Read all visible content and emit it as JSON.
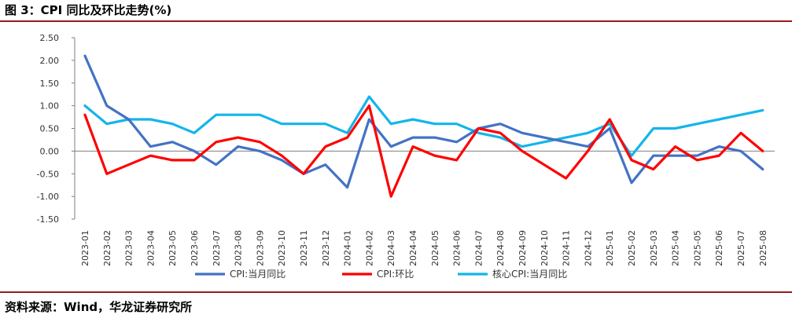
{
  "title": "图 3：CPI 同比及环比走势(%)",
  "source": "资料来源：Wind，华龙证券研究所",
  "chart_data": {
    "type": "line",
    "x": [
      "2023-01",
      "2023-02",
      "2023-03",
      "2023-04",
      "2023-05",
      "2023-06",
      "2023-07",
      "2023-08",
      "2023-09",
      "2023-10",
      "2023-11",
      "2023-12",
      "2024-01",
      "2024-02",
      "2024-03",
      "2024-04",
      "2024-05",
      "2024-06",
      "2024-07",
      "2024-08",
      "2024-09",
      "2024-10",
      "2024-11",
      "2024-12",
      "2025-01",
      "2025-02",
      "2025-03",
      "2025-04",
      "2025-05",
      "2025-06",
      "2025-07",
      "2025-08"
    ],
    "yticks": [
      "2.50",
      "2.00",
      "1.50",
      "1.00",
      "0.50",
      "0.00",
      "-0.50",
      "-1.00",
      "-1.50"
    ],
    "ylim": [
      -1.5,
      2.5
    ],
    "series": [
      {
        "name": "CPI:当月同比",
        "color": "#4472c4",
        "values": [
          2.1,
          1.0,
          0.7,
          0.1,
          0.2,
          0.0,
          -0.3,
          0.1,
          0.0,
          -0.2,
          -0.5,
          -0.3,
          -0.8,
          0.7,
          0.1,
          0.3,
          0.3,
          0.2,
          0.5,
          0.6,
          0.4,
          0.3,
          0.2,
          0.1,
          0.5,
          -0.7,
          -0.1,
          -0.1,
          -0.1,
          0.1,
          0.0,
          -0.4
        ]
      },
      {
        "name": "CPI:环比",
        "color": "#ff0000",
        "values": [
          0.8,
          -0.5,
          -0.3,
          -0.1,
          -0.2,
          -0.2,
          0.2,
          0.3,
          0.2,
          -0.1,
          -0.5,
          0.1,
          0.3,
          1.0,
          -1.0,
          0.1,
          -0.1,
          -0.2,
          0.5,
          0.4,
          0.0,
          -0.3,
          -0.6,
          0.0,
          0.7,
          -0.2,
          -0.4,
          0.1,
          -0.2,
          -0.1,
          0.4,
          0.0
        ]
      },
      {
        "name": "核心CPI:当月同比",
        "color": "#13b5ea",
        "values": [
          1.0,
          0.6,
          0.7,
          0.7,
          0.6,
          0.4,
          0.8,
          0.8,
          0.8,
          0.6,
          0.6,
          0.6,
          0.4,
          1.2,
          0.6,
          0.7,
          0.6,
          0.6,
          0.4,
          0.3,
          0.1,
          0.2,
          0.3,
          0.4,
          0.6,
          -0.1,
          0.5,
          0.5,
          0.6,
          0.7,
          0.8,
          0.9
        ]
      }
    ]
  }
}
